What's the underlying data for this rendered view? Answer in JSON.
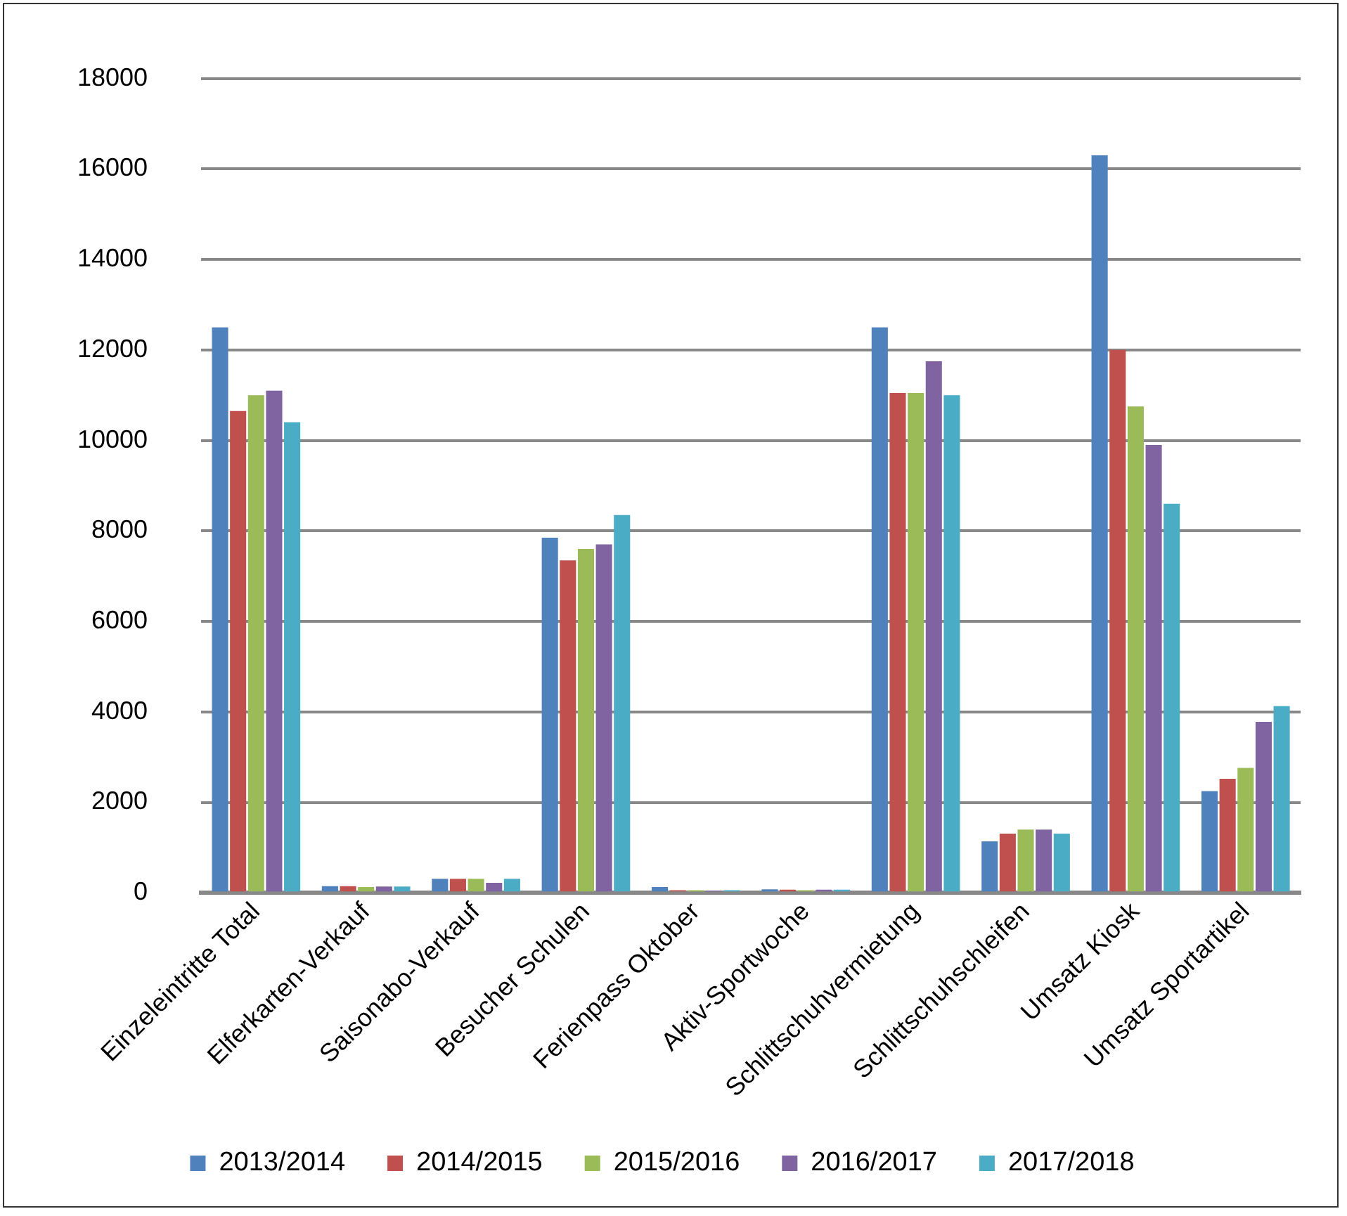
{
  "chart_data": {
    "type": "bar",
    "categories": [
      "Einzeleintritte Total",
      "Elferkarten-Verkauf",
      "Saisonabo-Verkauf",
      "Besucher Schulen",
      "Ferienpass Oktober",
      "Aktiv-Sportwoche",
      "Schlittschuhvermietung",
      "Schlittschuhschleifen",
      "Umsatz Kiosk",
      "Umsatz Sportartikel"
    ],
    "series": [
      {
        "name": "2013/2014",
        "color": "#4f81bd",
        "values": [
          12500,
          150,
          310,
          7850,
          130,
          80,
          12500,
          1140,
          16300,
          2250
        ]
      },
      {
        "name": "2014/2015",
        "color": "#c0504d",
        "values": [
          10650,
          150,
          310,
          7350,
          60,
          70,
          11050,
          1310,
          12000,
          2520
        ]
      },
      {
        "name": "2015/2016",
        "color": "#9bbb59",
        "values": [
          11000,
          130,
          310,
          7600,
          60,
          60,
          11050,
          1400,
          10750,
          2760
        ]
      },
      {
        "name": "2016/2017",
        "color": "#8064a2",
        "values": [
          11100,
          140,
          220,
          7700,
          50,
          70,
          11750,
          1400,
          9900,
          3780
        ]
      },
      {
        "name": "2017/2018",
        "color": "#4bacc6",
        "values": [
          10400,
          140,
          310,
          8350,
          60,
          70,
          11000,
          1310,
          8600,
          4130
        ]
      }
    ],
    "ylim": [
      0,
      18000
    ],
    "yticks": [
      0,
      2000,
      4000,
      6000,
      8000,
      10000,
      12000,
      14000,
      16000,
      18000
    ],
    "grid": "y",
    "legend": "bottom"
  }
}
